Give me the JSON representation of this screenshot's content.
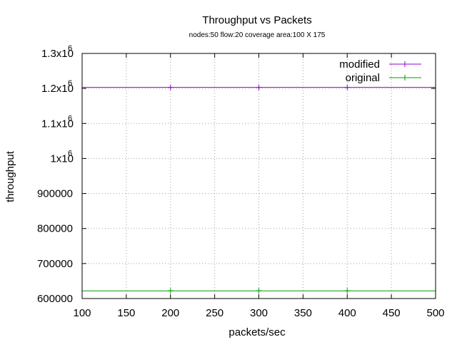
{
  "chart_data": {
    "type": "line",
    "title": "Throughput vs Packets",
    "subtitle": "nodes:50  flow:20  coverage area:100 X 175",
    "xlabel": "packets/sec",
    "ylabel": "throughput",
    "xlim": [
      100,
      500
    ],
    "ylim": [
      600000,
      1300000
    ],
    "x_ticks": [
      100,
      150,
      200,
      250,
      300,
      350,
      400,
      450,
      500
    ],
    "y_ticks": [
      {
        "value": 600000,
        "label": "600000"
      },
      {
        "value": 700000,
        "label": "700000"
      },
      {
        "value": 800000,
        "label": "800000"
      },
      {
        "value": 900000,
        "label": "900000"
      },
      {
        "value": 1000000,
        "label": "1x10",
        "exp": "6"
      },
      {
        "value": 1100000,
        "label": "1.1x10",
        "exp": "6"
      },
      {
        "value": 1200000,
        "label": "1.2x10",
        "exp": "6"
      },
      {
        "value": 1300000,
        "label": "1.3x10",
        "exp": "6"
      }
    ],
    "grid": true,
    "legend_position": "top-right",
    "series": [
      {
        "name": "modified",
        "color": "#9400d3",
        "x": [
          100,
          200,
          300,
          400,
          500
        ],
        "y": [
          1203000,
          1203000,
          1203000,
          1203000,
          1203000
        ]
      },
      {
        "name": "original",
        "color": "#009e00",
        "x": [
          100,
          200,
          300,
          400,
          500
        ],
        "y": [
          622000,
          622000,
          622000,
          622000,
          622000
        ]
      }
    ]
  }
}
